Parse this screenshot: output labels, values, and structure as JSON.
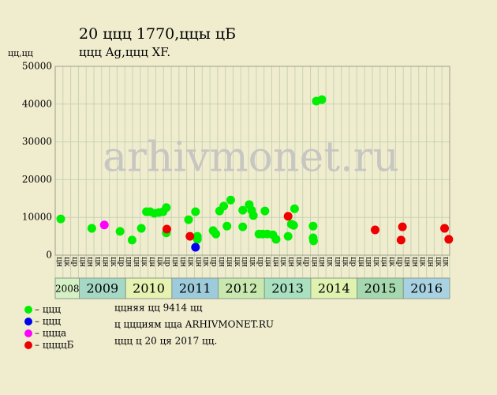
{
  "chart_data": {
    "type": "scatter",
    "title": "20 ццц 1770,ццы цБ",
    "subtitle": "ццц Ag,ццц XF.",
    "y_label": "цц,цц",
    "watermark": "arhivmonet.ru",
    "xlim": [
      2008.48,
      2017.0
    ],
    "ylim": [
      0,
      50000
    ],
    "yticks": [
      0,
      10000,
      20000,
      30000,
      40000,
      50000
    ],
    "grid": true,
    "year_labels": [
      2008,
      2009,
      2010,
      2011,
      2012,
      2013,
      2014,
      2015,
      2016
    ],
    "year_colors": [
      "#d4f0c4",
      "#a6d8c6",
      "#e6f2b2",
      "#9ecbdc",
      "#c8e8b0",
      "#a8e0c0",
      "#e0f2b0",
      "#a6d8b0",
      "#a8d2e2"
    ],
    "month_labels": [
      "цн",
      "цк",
      "цр",
      "цн",
      "цн",
      "цк",
      "цн",
      "цк",
      "цр",
      "цн",
      "цн",
      "цк",
      "цн",
      "цк",
      "цр",
      "цн",
      "цн",
      "цк",
      "цн",
      "цк",
      "цр",
      "цн",
      "цн",
      "цк",
      "цн",
      "цк",
      "цр",
      "цн",
      "цн",
      "цк",
      "цн",
      "цк",
      "цр",
      "цн",
      "цн",
      "цк",
      "цн",
      "цк",
      "цр",
      "цн",
      "цн",
      "цк",
      "цн",
      "цк",
      "цр",
      "цн",
      "цн",
      "цк",
      "цн",
      "цк",
      "цк"
    ],
    "series": [
      {
        "name": "– ццц",
        "color": "#00ee00",
        "x": [
          2008.6,
          2009.27,
          2009.88,
          2010.14,
          2010.34,
          2010.45,
          2010.53,
          2010.62,
          2010.72,
          2010.81,
          2010.88,
          2010.88,
          2011.36,
          2011.51,
          2011.55,
          2011.55,
          2011.89,
          2011.95,
          2012.03,
          2012.12,
          2012.19,
          2012.27,
          2012.53,
          2012.53,
          2012.67,
          2012.72,
          2012.76,
          2012.88,
          2012.96,
          2013.01,
          2013.06,
          2013.18,
          2013.25,
          2013.51,
          2013.58,
          2013.63,
          2013.65,
          2014.05,
          2014.05,
          2014.06,
          2014.12,
          2014.24
        ],
        "values": [
          9600,
          7100,
          6300,
          4000,
          7100,
          11500,
          11500,
          11100,
          11300,
          11500,
          12600,
          5900,
          9400,
          11500,
          5000,
          4200,
          6500,
          5600,
          11700,
          13000,
          7700,
          14600,
          11900,
          7500,
          13400,
          11900,
          10500,
          5600,
          5600,
          11700,
          5600,
          5400,
          4200,
          5000,
          8200,
          7900,
          12300,
          7700,
          4600,
          3800,
          40800,
          41200
        ]
      },
      {
        "name": "– ццц",
        "color": "#0000ee",
        "x": [
          2011.51
        ],
        "values": [
          2100
        ]
      },
      {
        "name": "– ццца",
        "color": "#ff00ff",
        "x": [
          2009.54
        ],
        "values": [
          8000
        ]
      },
      {
        "name": "– ццццБ",
        "color": "#ee0000",
        "x": [
          2010.89,
          2011.39,
          2013.51,
          2015.39,
          2015.95,
          2015.98,
          2016.89,
          2016.98
        ],
        "values": [
          6900,
          5000,
          10300,
          6700,
          4000,
          7500,
          7100,
          4200
        ]
      }
    ],
    "notes": [
      "ццняя цц 9414 цц",
      "ц ццциям цца ARHIVMONET.RU",
      "ццц ц 20 ця 2017 цц."
    ]
  }
}
